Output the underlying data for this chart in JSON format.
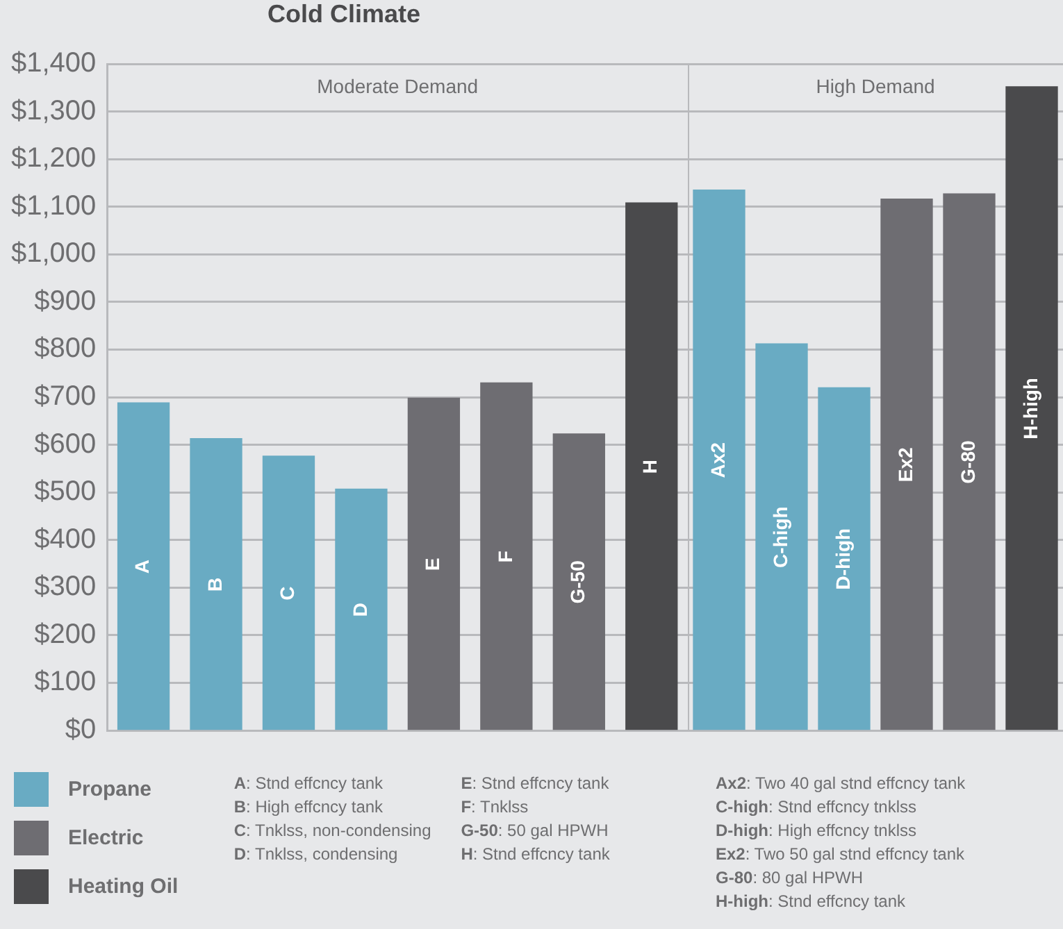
{
  "chart_data": [
    {
      "type": "bar",
      "title": "Cold Climate",
      "subtitle": "Moderate Demand",
      "categories": [
        "A",
        "B",
        "C",
        "D",
        "E",
        "F",
        "G-50",
        "H"
      ],
      "series": [
        {
          "name": "Propane",
          "color": "#69abc3",
          "values": [
            688,
            613,
            576,
            507,
            null,
            null,
            null,
            null
          ]
        },
        {
          "name": "Electric",
          "color": "#6e6d72",
          "values": [
            null,
            null,
            null,
            null,
            698,
            730,
            623,
            null
          ]
        },
        {
          "name": "Heating Oil",
          "color": "#4a4a4c",
          "values": [
            null,
            null,
            null,
            null,
            null,
            null,
            null,
            1108
          ]
        }
      ],
      "ylim": [
        0,
        1400
      ],
      "yticks": [
        {
          "value": 0,
          "label": "$0"
        },
        {
          "value": 100,
          "label": "$100"
        },
        {
          "value": 200,
          "label": "$200"
        },
        {
          "value": 300,
          "label": "$300"
        },
        {
          "value": 400,
          "label": "$400"
        },
        {
          "value": 500,
          "label": "$500"
        },
        {
          "value": 600,
          "label": "$600"
        },
        {
          "value": 700,
          "label": "$700"
        },
        {
          "value": 800,
          "label": "$800"
        },
        {
          "value": 900,
          "label": "$900"
        },
        {
          "value": 1000,
          "label": "$1,000"
        },
        {
          "value": 1100,
          "label": "$1,100"
        },
        {
          "value": 1200,
          "label": "$1,200"
        },
        {
          "value": 1300,
          "label": "$1,300"
        },
        {
          "value": 1400,
          "label": "$1,400"
        }
      ],
      "annotations": [
        "A: Stnd effcncy tank",
        "B: High effcncy tank",
        "C: Tnklss, non-condensing",
        "D: Tnklss, condensing",
        "E: Stnd effcncy tank",
        "F: Tnklss",
        "G-50: 50 gal HPWH",
        "H: Stnd effcncy tank"
      ],
      "grid": "y",
      "legend": "bottom left",
      "tick_labels": "y"
    },
    {
      "type": "bar",
      "subtitle": "High Demand",
      "categories": [
        "Ax2",
        "C-high",
        "D-high",
        "Ex2",
        "G-80",
        "H-high"
      ],
      "series": [
        {
          "color": "#69abc3",
          "values": [
            1135,
            812,
            720,
            null,
            null,
            null
          ]
        },
        {
          "color": "#6e6d72",
          "values": [
            null,
            null,
            null,
            1116,
            1127,
            null
          ]
        },
        {
          "color": "#4a4a4c",
          "values": [
            null,
            null,
            null,
            null,
            null,
            1352
          ]
        }
      ],
      "ylim": [
        0,
        1400
      ],
      "yticks": [
        {
          "value": 0,
          "label": null
        },
        {
          "value": 100,
          "label": null
        },
        {
          "value": 200,
          "label": null
        },
        {
          "value": 300,
          "label": null
        },
        {
          "value": 400,
          "label": null
        },
        {
          "value": 500,
          "label": null
        },
        {
          "value": 600,
          "label": null
        },
        {
          "value": 700,
          "label": null
        },
        {
          "value": 800,
          "label": null
        },
        {
          "value": 900,
          "label": null
        },
        {
          "value": 1000,
          "label": null
        },
        {
          "value": 1100,
          "label": null
        },
        {
          "value": 1200,
          "label": null
        },
        {
          "value": 1300,
          "label": null
        },
        {
          "value": 1400,
          "label": null
        }
      ],
      "annotations": [
        "Ax2: Two 40 gal stnd effcncy tank",
        "C-high: Stnd effcncy tnklss",
        "D-high: High effcncy tnklss",
        "Ex2: Two 50 gal stnd effcncy tank",
        "G-80: 80 gal HPWH",
        "H-high: Stnd effcncy tank"
      ],
      "grid": "y",
      "tick_labels": false
    }
  ]
}
